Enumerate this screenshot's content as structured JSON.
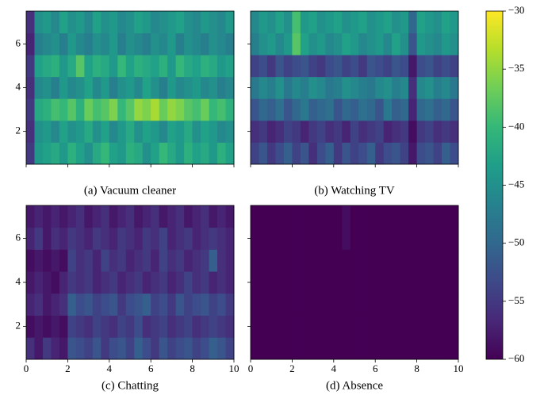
{
  "chart_data": [
    {
      "type": "heatmap",
      "caption": "(a) Vacuum cleaner",
      "xlim": [
        0,
        10
      ],
      "ylim": [
        0.5,
        7.5
      ],
      "xticks": [
        0,
        2,
        4,
        6,
        8,
        10
      ],
      "yticks": [
        2,
        4,
        6
      ],
      "xticklabels": false,
      "yticklabels": true,
      "colormap": "viridis",
      "values": [
        [
          -55,
          -44,
          -43,
          -42,
          -44,
          -41,
          -43,
          -45,
          -42,
          -40,
          -43,
          -44,
          -41,
          -42,
          -45,
          -43,
          -40,
          -42,
          -44,
          -41,
          -43,
          -42,
          -44,
          -41,
          -43
        ],
        [
          -56,
          -45,
          -44,
          -46,
          -43,
          -45,
          -44,
          -42,
          -45,
          -43,
          -46,
          -44,
          -42,
          -45,
          -43,
          -44,
          -46,
          -43,
          -44,
          -42,
          -45,
          -43,
          -44,
          -46,
          -45
        ],
        [
          -55,
          -42,
          -41,
          -39,
          -40,
          -38,
          -41,
          -37,
          -39,
          -38,
          -36,
          -40,
          -38,
          -35,
          -36,
          -34,
          -37,
          -35,
          -36,
          -38,
          -39,
          -37,
          -40,
          -39,
          -41
        ],
        [
          -56,
          -46,
          -45,
          -47,
          -44,
          -46,
          -45,
          -43,
          -46,
          -44,
          -47,
          -45,
          -44,
          -46,
          -43,
          -45,
          -47,
          -44,
          -46,
          -45,
          -44,
          -46,
          -45,
          -47,
          -46
        ],
        [
          -55,
          -43,
          -42,
          -41,
          -44,
          -42,
          -38,
          -43,
          -41,
          -42,
          -44,
          -40,
          -43,
          -41,
          -42,
          -43,
          -41,
          -44,
          -40,
          -42,
          -43,
          -41,
          -42,
          -44,
          -43
        ],
        [
          -57,
          -47,
          -46,
          -45,
          -47,
          -44,
          -46,
          -47,
          -45,
          -46,
          -44,
          -47,
          -45,
          -46,
          -47,
          -45,
          -46,
          -44,
          -47,
          -45,
          -46,
          -47,
          -45,
          -46,
          -47
        ],
        [
          -56,
          -45,
          -44,
          -46,
          -43,
          -45,
          -44,
          -46,
          -43,
          -45,
          -44,
          -46,
          -45,
          -43,
          -44,
          -46,
          -45,
          -44,
          -43,
          -45,
          -46,
          -44,
          -45,
          -46,
          -44
        ]
      ]
    },
    {
      "type": "heatmap",
      "caption": "(b) Watching TV",
      "xlim": [
        0,
        10
      ],
      "ylim": [
        0.5,
        7.5
      ],
      "xticks": [
        0,
        2,
        4,
        6,
        8,
        10
      ],
      "yticks": [
        2,
        4,
        6
      ],
      "xticklabels": false,
      "yticklabels": false,
      "colormap": "viridis",
      "values": [
        [
          -54,
          -52,
          -55,
          -53,
          -51,
          -54,
          -52,
          -56,
          -53,
          -51,
          -55,
          -52,
          -54,
          -53,
          -51,
          -55,
          -53,
          -52,
          -54,
          -58,
          -53,
          -52,
          -54,
          -51,
          -53
        ],
        [
          -56,
          -55,
          -57,
          -56,
          -54,
          -55,
          -57,
          -55,
          -54,
          -56,
          -55,
          -57,
          -54,
          -56,
          -55,
          -54,
          -57,
          -56,
          -55,
          -59,
          -55,
          -54,
          -56,
          -55,
          -56
        ],
        [
          -52,
          -50,
          -51,
          -49,
          -52,
          -50,
          -48,
          -51,
          -50,
          -49,
          -52,
          -50,
          -51,
          -49,
          -50,
          -52,
          -48,
          -51,
          -50,
          -57,
          -50,
          -49,
          -51,
          -50,
          -52
        ],
        [
          -48,
          -46,
          -47,
          -45,
          -48,
          -46,
          -47,
          -45,
          -46,
          -48,
          -47,
          -45,
          -46,
          -47,
          -48,
          -46,
          -45,
          -47,
          -46,
          -56,
          -46,
          -45,
          -47,
          -46,
          -48
        ],
        [
          -54,
          -53,
          -55,
          -52,
          -54,
          -53,
          -52,
          -54,
          -55,
          -53,
          -52,
          -54,
          -53,
          -55,
          -52,
          -53,
          -54,
          -52,
          -53,
          -58,
          -53,
          -52,
          -54,
          -53,
          -54
        ],
        [
          -47,
          -45,
          -44,
          -46,
          -44,
          -38,
          -43,
          -45,
          -44,
          -46,
          -45,
          -43,
          -44,
          -46,
          -45,
          -44,
          -46,
          -43,
          -45,
          -52,
          -44,
          -45,
          -46,
          -44,
          -45
        ],
        [
          -46,
          -44,
          -45,
          -43,
          -45,
          -39,
          -44,
          -43,
          -45,
          -44,
          -43,
          -45,
          -44,
          -43,
          -45,
          -44,
          -43,
          -45,
          -44,
          -50,
          -43,
          -44,
          -45,
          -43,
          -44
        ]
      ]
    },
    {
      "type": "heatmap",
      "caption": "(c) Chatting",
      "xlim": [
        0,
        10
      ],
      "ylim": [
        0.5,
        7.5
      ],
      "xticks": [
        0,
        2,
        4,
        6,
        8,
        10
      ],
      "yticks": [
        2,
        4,
        6
      ],
      "xticklabels": true,
      "yticklabels": true,
      "colormap": "viridis",
      "values": [
        [
          -56,
          -58,
          -55,
          -57,
          -58,
          -52,
          -53,
          -54,
          -52,
          -55,
          -53,
          -52,
          -54,
          -51,
          -53,
          -55,
          -52,
          -54,
          -53,
          -52,
          -54,
          -53,
          -51,
          -52,
          -54
        ],
        [
          -59,
          -58,
          -59,
          -58,
          -59,
          -54,
          -55,
          -56,
          -54,
          -55,
          -56,
          -54,
          -55,
          -53,
          -56,
          -55,
          -54,
          -56,
          -55,
          -54,
          -56,
          -55,
          -54,
          -55,
          -56
        ],
        [
          -57,
          -56,
          -58,
          -57,
          -56,
          -51,
          -53,
          -52,
          -54,
          -53,
          -52,
          -55,
          -53,
          -52,
          -51,
          -54,
          -53,
          -55,
          -52,
          -54,
          -53,
          -52,
          -54,
          -53,
          -55
        ],
        [
          -58,
          -57,
          -58,
          -59,
          -57,
          -55,
          -56,
          -55,
          -57,
          -56,
          -55,
          -57,
          -56,
          -55,
          -57,
          -56,
          -55,
          -57,
          -56,
          -54,
          -56,
          -55,
          -57,
          -56,
          -57
        ],
        [
          -59,
          -58,
          -59,
          -58,
          -59,
          -54,
          -56,
          -55,
          -57,
          -54,
          -56,
          -55,
          -57,
          -56,
          -55,
          -57,
          -54,
          -56,
          -55,
          -57,
          -56,
          -55,
          -51,
          -56,
          -57
        ],
        [
          -57,
          -55,
          -58,
          -56,
          -57,
          -55,
          -56,
          -57,
          -55,
          -56,
          -57,
          -55,
          -56,
          -57,
          -55,
          -56,
          -54,
          -57,
          -56,
          -55,
          -57,
          -56,
          -55,
          -56,
          -57
        ],
        [
          -58,
          -57,
          -58,
          -57,
          -58,
          -57,
          -56,
          -58,
          -57,
          -56,
          -58,
          -57,
          -56,
          -58,
          -57,
          -56,
          -58,
          -57,
          -56,
          -58,
          -57,
          -56,
          -58,
          -57,
          -58
        ]
      ]
    },
    {
      "type": "heatmap",
      "caption": "(d) Absence",
      "xlim": [
        0,
        10
      ],
      "ylim": [
        0.5,
        7.5
      ],
      "xticks": [
        0,
        2,
        4,
        6,
        8,
        10
      ],
      "yticks": [
        2,
        4,
        6
      ],
      "xticklabels": true,
      "yticklabels": false,
      "colormap": "viridis",
      "values": [
        [
          -60,
          -60,
          -60,
          -60,
          -60,
          -60,
          -60,
          -60,
          -60,
          -60,
          -60,
          -60,
          -60,
          -60,
          -60,
          -60,
          -60,
          -60,
          -60,
          -60,
          -60,
          -60,
          -60,
          -60,
          -60
        ],
        [
          -60,
          -60,
          -60,
          -60,
          -60,
          -60,
          -60,
          -60,
          -60,
          -60,
          -60,
          -60,
          -60,
          -60,
          -60,
          -60,
          -60,
          -60,
          -60,
          -60,
          -60,
          -60,
          -60,
          -60,
          -60
        ],
        [
          -60,
          -60,
          -60,
          -60,
          -60,
          -60,
          -60,
          -60,
          -60,
          -60,
          -60,
          -60,
          -60,
          -60,
          -60,
          -60,
          -60,
          -60,
          -60,
          -60,
          -60,
          -60,
          -60,
          -60,
          -60
        ],
        [
          -60,
          -60,
          -60,
          -60,
          -60,
          -60,
          -60,
          -60,
          -60,
          -60,
          -60,
          -60,
          -60,
          -60,
          -60,
          -60,
          -60,
          -60,
          -60,
          -60,
          -60,
          -60,
          -60,
          -60,
          -60
        ],
        [
          -60,
          -60,
          -60,
          -60,
          -60,
          -60,
          -60,
          -60,
          -60,
          -60,
          -60,
          -60,
          -60,
          -60,
          -60,
          -60,
          -60,
          -60,
          -60,
          -60,
          -60,
          -60,
          -60,
          -60,
          -60
        ],
        [
          -60,
          -60,
          -60,
          -60,
          -60,
          -60,
          -60,
          -60,
          -60,
          -60,
          -60,
          -59,
          -60,
          -60,
          -60,
          -60,
          -60,
          -60,
          -60,
          -60,
          -60,
          -60,
          -60,
          -60,
          -60
        ],
        [
          -60,
          -60,
          -60,
          -60,
          -60,
          -60,
          -60,
          -60,
          -60,
          -60,
          -60,
          -59,
          -60,
          -60,
          -60,
          -60,
          -60,
          -60,
          -60,
          -60,
          -60,
          -60,
          -60,
          -60,
          -60
        ]
      ]
    },
    {
      "type": "colorbar",
      "colormap": "viridis",
      "clim": [
        -60,
        -30
      ],
      "ticks": [
        {
          "value": -60,
          "label": "−60"
        },
        {
          "value": -55,
          "label": "−55"
        },
        {
          "value": -50,
          "label": "−50"
        },
        {
          "value": -45,
          "label": "−45"
        },
        {
          "value": -40,
          "label": "−40"
        },
        {
          "value": -35,
          "label": "−35"
        },
        {
          "value": -30,
          "label": "−30"
        }
      ]
    }
  ]
}
